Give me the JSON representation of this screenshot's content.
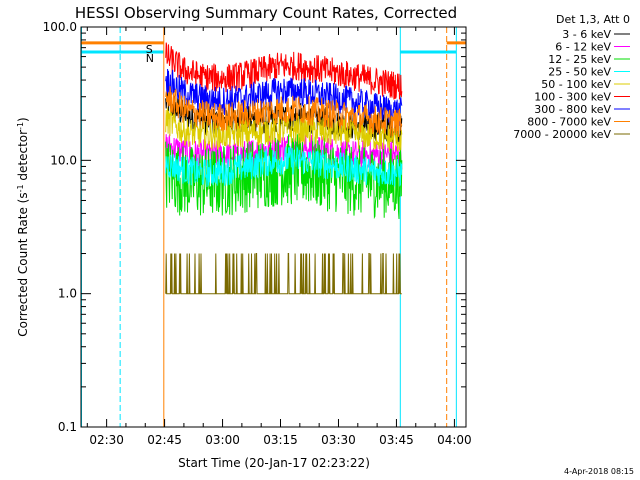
{
  "chart_data": {
    "type": "line",
    "title": "HESSI Observing Summary Count Rates, Corrected",
    "xlabel": "Start Time (20-Jan-17 02:23:22)",
    "ylabel_prefix": "Corrected Count Rate (s",
    "ylabel_sup1": "-1",
    "ylabel_mid": " detector",
    "ylabel_sup2": "-1",
    "ylabel_suffix": ")",
    "y_scale": "log",
    "ylim": [
      0.1,
      100
    ],
    "xlim": [
      "02:23:22",
      "04:03:00"
    ],
    "xlim_minutes": [
      143.37,
      243.0
    ],
    "x_ticks": [
      {
        "label": "02:30",
        "minutes": 150
      },
      {
        "label": "02:45",
        "minutes": 165
      },
      {
        "label": "03:00",
        "minutes": 180
      },
      {
        "label": "03:15",
        "minutes": 195
      },
      {
        "label": "03:30",
        "minutes": 210
      },
      {
        "label": "03:45",
        "minutes": 225
      },
      {
        "label": "04:00",
        "minutes": 240
      }
    ],
    "y_ticks": [
      {
        "label": "0.1",
        "value": 0.1
      },
      {
        "label": "1.0",
        "value": 1.0
      },
      {
        "label": "10.0",
        "value": 10.0
      },
      {
        "label": "100.0",
        "value": 100.0
      }
    ],
    "legend_title": "Det 1,3, Att 0",
    "legend_placement": "top-right outside",
    "data_window_minutes": [
      165.3,
      226.5
    ],
    "series": [
      {
        "name": "3 - 6 keV",
        "color": "#000000",
        "x": [
          165.5,
          170,
          175,
          180,
          185,
          190,
          195,
          200,
          205,
          210,
          215,
          220,
          226
        ],
        "y": [
          27,
          22,
          20,
          19,
          20,
          20,
          21,
          21,
          20,
          19,
          18,
          18,
          17
        ]
      },
      {
        "name": "6 - 12 keV",
        "color": "#ff00ff",
        "x": [
          165.5,
          170,
          175,
          180,
          185,
          190,
          195,
          200,
          205,
          210,
          215,
          220,
          226
        ],
        "y": [
          13,
          11.5,
          11,
          11,
          11,
          12,
          12.5,
          12.5,
          12,
          11.5,
          11,
          11,
          11
        ]
      },
      {
        "name": "12 - 25 keV",
        "color": "#00dd00",
        "x": [
          165.5,
          170,
          175,
          180,
          185,
          190,
          195,
          200,
          205,
          210,
          215,
          220,
          226
        ],
        "y": [
          8,
          7,
          6.8,
          7,
          7.5,
          8,
          8.5,
          8.5,
          8,
          7.5,
          7,
          7,
          6.8
        ]
      },
      {
        "name": "25 - 50 keV",
        "color": "#00ffff",
        "x": [
          165.5,
          170,
          175,
          180,
          185,
          190,
          195,
          200,
          205,
          210,
          215,
          220,
          226
        ],
        "y": [
          9.5,
          8.5,
          8,
          8.2,
          8.8,
          9.5,
          10,
          10,
          9.5,
          9,
          8.5,
          8.2,
          8
        ]
      },
      {
        "name": "50 - 100 keV",
        "color": "#ddcc00",
        "x": [
          165.5,
          170,
          175,
          180,
          185,
          190,
          195,
          200,
          205,
          210,
          215,
          220,
          226
        ],
        "y": [
          20,
          16.5,
          15.5,
          15.5,
          16,
          16.5,
          17,
          17,
          16.5,
          16,
          15.5,
          15,
          14.5
        ]
      },
      {
        "name": "100 - 300 keV",
        "color": "#ff0000",
        "x": [
          165.5,
          170,
          175,
          180,
          185,
          190,
          195,
          200,
          205,
          210,
          215,
          220,
          226
        ],
        "y": [
          60,
          47,
          42,
          41,
          43,
          47,
          51,
          51,
          48,
          45,
          42,
          39,
          36
        ]
      },
      {
        "name": "300 - 800 keV",
        "color": "#0000ff",
        "x": [
          165.5,
          170,
          175,
          180,
          185,
          190,
          195,
          200,
          205,
          210,
          215,
          220,
          226
        ],
        "y": [
          40,
          32,
          29,
          28,
          29,
          31,
          33,
          33,
          31,
          29,
          27,
          25,
          23
        ]
      },
      {
        "name": "800 - 7000 keV",
        "color": "#ff8000",
        "x": [
          165.5,
          170,
          175,
          180,
          185,
          190,
          195,
          200,
          205,
          210,
          215,
          220,
          226
        ],
        "y": [
          30,
          24,
          22,
          21,
          22,
          23,
          24,
          24,
          23,
          22,
          21,
          20,
          19
        ]
      },
      {
        "name": "7000 - 20000 keV",
        "color": "#7a6a00",
        "x": [
          165.5,
          170,
          175,
          180,
          185,
          190,
          195,
          200,
          205,
          210,
          215,
          220,
          226
        ],
        "y": [
          1.0,
          1.0,
          1.0,
          1.0,
          1.0,
          1.0,
          1.0,
          1.0,
          1.0,
          1.0,
          1.0,
          1.0,
          1.0
        ]
      }
    ],
    "flag_lines": [
      {
        "label": "N",
        "color": "#00e5ff",
        "segments": [
          {
            "from": 143.4,
            "to": 164.8,
            "value": 65
          },
          {
            "from": 226.0,
            "to": 240.5,
            "value": 65
          }
        ],
        "vlines": [
          143.5,
          153.5,
          226.0,
          240.5
        ]
      },
      {
        "label": "S",
        "color": "#ff8000",
        "segments": [
          {
            "from": 143.4,
            "to": 164.8,
            "value": 76
          },
          {
            "from": 238.0,
            "to": 243.0,
            "value": 76
          }
        ],
        "vlines": [
          164.8,
          238.0
        ]
      }
    ],
    "footer_date": "4-Apr-2018 08:15"
  }
}
